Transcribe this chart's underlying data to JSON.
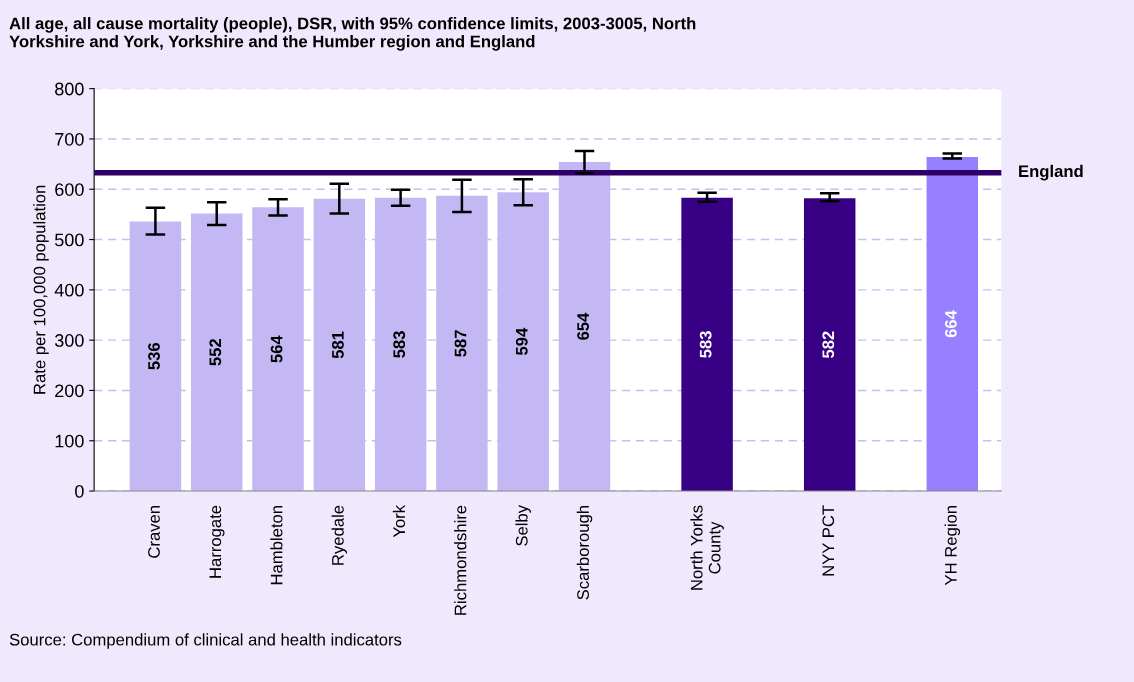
{
  "chart_data": {
    "type": "bar",
    "title": "All age, all cause mortality (people), DSR, with 95% confidence limits, 2003-3005, North\nYorkshire and York, Yorkshire and the Humber region and England",
    "ylabel": "Rate per 100,000 population",
    "categories": [
      "Craven",
      "Harrogate",
      "Hambleton",
      "Ryedale",
      "York",
      "Richmondshire",
      "Selby",
      "Scarborough",
      null,
      "North Yorks\nCounty",
      null,
      "NYY PCT",
      null,
      "YH Region"
    ],
    "values": [
      536,
      552,
      564,
      581,
      583,
      587,
      594,
      654,
      null,
      583,
      null,
      582,
      null,
      664
    ],
    "colors": [
      "#c4b8f4",
      "#c4b8f4",
      "#c4b8f4",
      "#c4b8f4",
      "#c4b8f4",
      "#c4b8f4",
      "#c4b8f4",
      "#c4b8f4",
      "#c4b8f4",
      "#380085",
      "#c4b8f4",
      "#380085",
      "#c4b8f4",
      "#9680ff"
    ],
    "errors": [
      [
        510,
        563
      ],
      [
        529,
        574
      ],
      [
        548,
        580
      ],
      [
        552,
        611
      ],
      [
        567,
        599
      ],
      [
        555,
        619
      ],
      [
        568,
        620
      ],
      [
        632,
        676
      ],
      null,
      [
        575,
        593
      ],
      null,
      [
        576,
        592
      ],
      null,
      [
        661,
        671
      ]
    ],
    "data_labels": true,
    "ylim": [
      0,
      800
    ],
    "yticks": [
      0,
      100,
      200,
      300,
      400,
      500,
      600,
      700,
      800
    ],
    "grid": "y",
    "ref_lines": [
      {
        "axis": "y",
        "value": 633,
        "label": "England",
        "color": "#2e0066",
        "line_style": "solid"
      }
    ],
    "annotations": [
      "Source: Compendium of clinical and health indicators"
    ]
  }
}
